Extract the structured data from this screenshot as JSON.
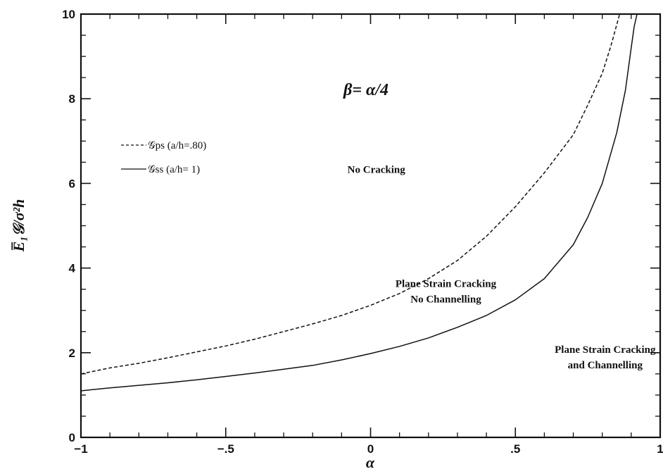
{
  "chart_data": {
    "type": "line",
    "title": "",
    "xlabel": "α",
    "ylabel": "E̅₁𝒢/σ²h",
    "xlim": [
      -1,
      1
    ],
    "ylim": [
      0,
      10
    ],
    "x_ticks": [
      {
        "value": -1,
        "label": "−1"
      },
      {
        "value": -0.5,
        "label": "−.5"
      },
      {
        "value": 0,
        "label": "0"
      },
      {
        "value": 0.5,
        "label": ".5"
      },
      {
        "value": 1,
        "label": "1"
      }
    ],
    "y_ticks": [
      {
        "value": 0,
        "label": "0"
      },
      {
        "value": 2,
        "label": "2"
      },
      {
        "value": 4,
        "label": "4"
      },
      {
        "value": 6,
        "label": "6"
      },
      {
        "value": 8,
        "label": "8"
      },
      {
        "value": 10,
        "label": "10"
      }
    ],
    "grid": false,
    "legend_position": "upper-left",
    "annotation": "β= α/4",
    "series": [
      {
        "name": "𝒢ps (a/h=.80)",
        "style": "dashed",
        "color": "#111111",
        "x": [
          -1.0,
          -0.9,
          -0.8,
          -0.7,
          -0.6,
          -0.5,
          -0.4,
          -0.3,
          -0.2,
          -0.1,
          0.0,
          0.1,
          0.2,
          0.3,
          0.4,
          0.5,
          0.6,
          0.7,
          0.75,
          0.8,
          0.83,
          0.86
        ],
        "y": [
          1.5,
          1.64,
          1.75,
          1.88,
          2.02,
          2.16,
          2.32,
          2.5,
          2.68,
          2.88,
          3.12,
          3.4,
          3.75,
          4.18,
          4.75,
          5.45,
          6.25,
          7.15,
          7.85,
          8.6,
          9.25,
          10.0
        ]
      },
      {
        "name": "𝒢ss (a/h= 1)",
        "style": "solid",
        "color": "#111111",
        "x": [
          -1.0,
          -0.9,
          -0.8,
          -0.7,
          -0.6,
          -0.5,
          -0.4,
          -0.3,
          -0.2,
          -0.1,
          0.0,
          0.1,
          0.2,
          0.3,
          0.4,
          0.5,
          0.6,
          0.7,
          0.75,
          0.8,
          0.85,
          0.88,
          0.9,
          0.91,
          0.92
        ],
        "y": [
          1.1,
          1.17,
          1.23,
          1.29,
          1.36,
          1.44,
          1.52,
          1.61,
          1.7,
          1.83,
          1.98,
          2.15,
          2.35,
          2.6,
          2.88,
          3.25,
          3.75,
          4.55,
          5.2,
          6.0,
          7.2,
          8.2,
          9.2,
          9.7,
          10.0
        ]
      }
    ],
    "region_labels": [
      {
        "lines": [
          "No Cracking"
        ],
        "x": 0.02,
        "y": 6.25
      },
      {
        "lines": [
          "Plane Strain Cracking",
          "No Channelling"
        ],
        "x": 0.26,
        "y": 3.55
      },
      {
        "lines": [
          "Plane Strain Cracking",
          "and Channelling"
        ],
        "x": 0.81,
        "y": 2.0
      }
    ]
  },
  "legend": {
    "items": [
      {
        "symbol": "𝒢",
        "sub": "ps",
        "label": "(a/h=.80)",
        "style": "dashed"
      },
      {
        "symbol": "𝒢",
        "sub": "ss",
        "label": "(a/h= 1)",
        "style": "solid"
      }
    ]
  }
}
